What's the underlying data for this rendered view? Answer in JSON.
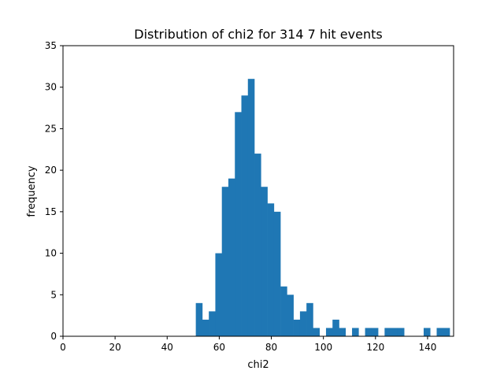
{
  "chart_data": {
    "type": "bar",
    "title": "Distribution of chi2 for 314 7 hit events",
    "xlabel": "chi2",
    "ylabel": "frequency",
    "xlim": [
      0,
      150
    ],
    "ylim": [
      0,
      35
    ],
    "xticks": [
      0,
      20,
      40,
      60,
      80,
      100,
      120,
      140
    ],
    "yticks": [
      0,
      5,
      10,
      15,
      20,
      25,
      30,
      35
    ],
    "grid": false,
    "color": "#1f77b4",
    "bin_width": 2.5,
    "bins": [
      {
        "x0": 51.0,
        "count": 4
      },
      {
        "x0": 53.5,
        "count": 2
      },
      {
        "x0": 56.0,
        "count": 3
      },
      {
        "x0": 58.5,
        "count": 10
      },
      {
        "x0": 61.0,
        "count": 18
      },
      {
        "x0": 63.5,
        "count": 19
      },
      {
        "x0": 66.0,
        "count": 27
      },
      {
        "x0": 68.5,
        "count": 29
      },
      {
        "x0": 71.0,
        "count": 31
      },
      {
        "x0": 73.5,
        "count": 22
      },
      {
        "x0": 76.0,
        "count": 18
      },
      {
        "x0": 78.5,
        "count": 16
      },
      {
        "x0": 81.0,
        "count": 15
      },
      {
        "x0": 83.5,
        "count": 6
      },
      {
        "x0": 86.0,
        "count": 5
      },
      {
        "x0": 88.5,
        "count": 2
      },
      {
        "x0": 91.0,
        "count": 3
      },
      {
        "x0": 93.5,
        "count": 4
      },
      {
        "x0": 96.0,
        "count": 1
      },
      {
        "x0": 98.5,
        "count": 0
      },
      {
        "x0": 101.0,
        "count": 1
      },
      {
        "x0": 103.5,
        "count": 2
      },
      {
        "x0": 106.0,
        "count": 1
      },
      {
        "x0": 108.5,
        "count": 0
      },
      {
        "x0": 111.0,
        "count": 1
      },
      {
        "x0": 113.5,
        "count": 0
      },
      {
        "x0": 116.0,
        "count": 1
      },
      {
        "x0": 118.5,
        "count": 1
      },
      {
        "x0": 121.0,
        "count": 0
      },
      {
        "x0": 123.5,
        "count": 1
      },
      {
        "x0": 126.0,
        "count": 1
      },
      {
        "x0": 128.5,
        "count": 1
      },
      {
        "x0": 131.0,
        "count": 0
      },
      {
        "x0": 133.5,
        "count": 0
      },
      {
        "x0": 136.0,
        "count": 0
      },
      {
        "x0": 138.5,
        "count": 1
      },
      {
        "x0": 141.0,
        "count": 0
      },
      {
        "x0": 143.5,
        "count": 1
      },
      {
        "x0": 146.0,
        "count": 1
      }
    ]
  }
}
